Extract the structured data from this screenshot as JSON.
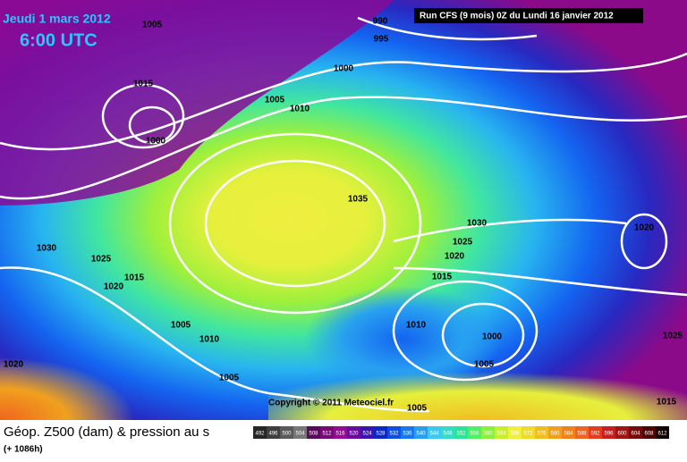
{
  "header": {
    "date": "Jeudi 1 mars 2012",
    "time": "6:00 UTC",
    "run": "Run CFS (9 mois) 0Z du Lundi 16 janvier 2012"
  },
  "copyright": "Copyright © 2011 Meteociel.fr",
  "footer": {
    "caption": "Géop. Z500 (dam) & pression au s",
    "lead": "(+ 1086h)"
  },
  "isobars": [
    "1005",
    "990",
    "995",
    "1000",
    "1015",
    "1005",
    "1010",
    "1000",
    "1035",
    "1030",
    "1025",
    "1020",
    "1020",
    "1030",
    "1025",
    "1020",
    "1015",
    "1015",
    "1005",
    "1010",
    "1010",
    "1000",
    "1025",
    "1005",
    "1020",
    "1005",
    "1005",
    "1015"
  ],
  "legend": {
    "labels": [
      492,
      496,
      500,
      504,
      508,
      512,
      516,
      520,
      524,
      528,
      532,
      536,
      540,
      544,
      548,
      552,
      556,
      560,
      564,
      568,
      572,
      576,
      580,
      584,
      588,
      592,
      596,
      600,
      604,
      608,
      612
    ],
    "colors": [
      "#262626",
      "#3f3f3f",
      "#5a5a5a",
      "#777777",
      "#5a0a5a",
      "#780a78",
      "#960a96",
      "#6a0aa0",
      "#3c14b4",
      "#0a28c8",
      "#0a50e6",
      "#1478f0",
      "#28a0f0",
      "#3cc8f0",
      "#32dcc8",
      "#28e696",
      "#50f064",
      "#8cf03c",
      "#c8f028",
      "#f0f03c",
      "#f0dc28",
      "#f0be1e",
      "#f0a01e",
      "#f0821e",
      "#f0641e",
      "#e63c1e",
      "#c81e1e",
      "#a01414",
      "#780a0a",
      "#500505",
      "#140000"
    ]
  }
}
